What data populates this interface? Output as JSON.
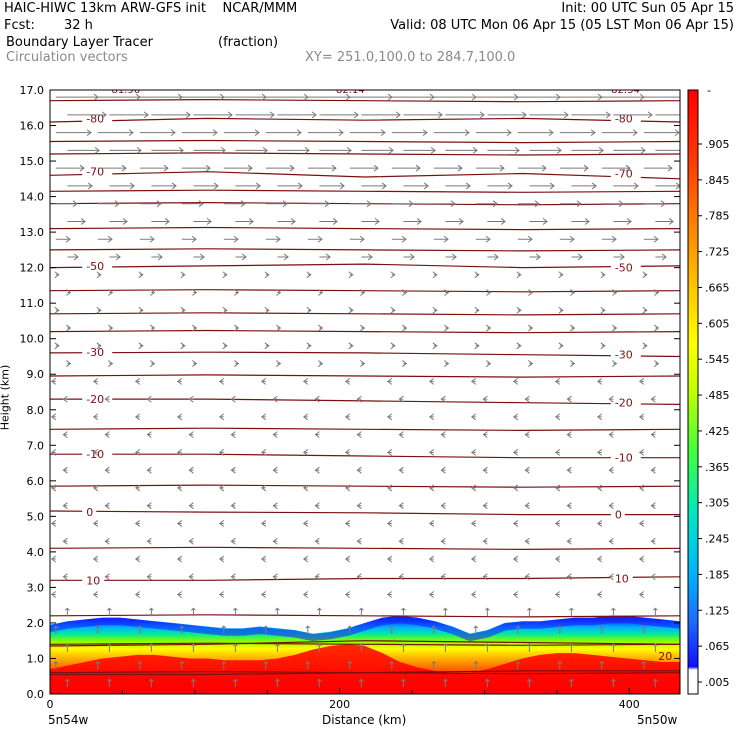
{
  "header": {
    "line1_left": "HAIC-HIWC 13km ARW-GFS init    NCAR/MMM",
    "line1_right": "Init: 00 UTC Sun 05 Apr 15",
    "fcst_label": "Fcst:",
    "fcst_value": "32 h",
    "valid": "Valid: 08 UTC Mon 06 Apr 15 (05 LST Mon 06 Apr 15)",
    "field_name": "Boundary Layer Tracer",
    "field_units": "(fraction)",
    "vectors_label": "Circulation vectors",
    "xsect": "XY= 251.0,100.0 to 284.7,100.0"
  },
  "colors": {
    "contour": "#7b1010",
    "vector": "#7a7a7a"
  },
  "chart_data": {
    "type": "heatmap",
    "ylabel": "Height (km)",
    "xlabel": "Distance (km)",
    "xlim": [
      0,
      435
    ],
    "ylim": [
      0,
      17
    ],
    "y_ticks": [
      "0.0",
      "1.0",
      "2.0",
      "3.0",
      "4.0",
      "5.0",
      "6.0",
      "7.0",
      "8.0",
      "9.0",
      "10.0",
      "11.0",
      "12.0",
      "13.0",
      "14.0",
      "15.0",
      "16.0",
      "17.0"
    ],
    "x_ticks": [
      0,
      200,
      400
    ],
    "x_end_left": "5n54w",
    "x_end_right": "5n50w",
    "colorbar": {
      "labels": [
        ".005",
        ".065",
        ".125",
        ".185",
        ".245",
        ".305",
        ".365",
        ".425",
        ".485",
        ".545",
        ".605",
        ".665",
        ".725",
        ".785",
        ".845",
        ".905"
      ],
      "top_label": "-"
    },
    "tracer_top_km": [
      1.95,
      2.05,
      2.1,
      2.15,
      2.15,
      2.1,
      2.05,
      2.0,
      1.95,
      1.9,
      1.85,
      1.85,
      1.9,
      1.85,
      1.8,
      1.7,
      1.75,
      1.85,
      2.0,
      2.15,
      2.2,
      2.15,
      2.05,
      1.9,
      1.7,
      1.8,
      2.0,
      2.05,
      2.05,
      2.1,
      2.15,
      2.15,
      2.2,
      2.2,
      2.15,
      2.1,
      2.05
    ],
    "tracer_valley_km": [
      0.7,
      0.8,
      0.9,
      1.0,
      1.05,
      1.1,
      1.1,
      1.05,
      1.0,
      1.0,
      0.95,
      0.95,
      0.95,
      1.0,
      1.1,
      1.25,
      1.35,
      1.4,
      1.35,
      1.15,
      0.9,
      0.75,
      0.65,
      0.6,
      0.6,
      0.7,
      0.85,
      1.0,
      1.1,
      1.15,
      1.15,
      1.1,
      1.05,
      1.0,
      0.95,
      0.9,
      0.9
    ],
    "temperature_contours": [
      {
        "label": "-80",
        "height_km": [
          16.1,
          16.2,
          16.15,
          16.2,
          16.1
        ]
      },
      {
        "label": "-70",
        "height_km": [
          14.6,
          14.7,
          14.55,
          14.65,
          14.5
        ]
      },
      {
        "label": "-50",
        "height_km": [
          12.0,
          12.05,
          12.1,
          12.0,
          12.05
        ]
      },
      {
        "label": "-30",
        "height_km": [
          9.6,
          9.62,
          9.6,
          9.55,
          9.5
        ]
      },
      {
        "label": "-20",
        "height_km": [
          8.3,
          8.3,
          8.25,
          8.2,
          8.15
        ]
      },
      {
        "label": "-10",
        "height_km": [
          6.75,
          6.75,
          6.7,
          6.65,
          6.65
        ]
      },
      {
        "label": "0",
        "height_km": [
          5.15,
          5.12,
          5.1,
          5.05,
          5.05
        ]
      },
      {
        "label": "10",
        "height_km": [
          3.2,
          3.2,
          3.25,
          3.25,
          3.3
        ]
      }
    ],
    "unlabeled_contours_km": [
      16.7,
      15.55,
      15.2,
      14.15,
      13.8,
      13.1,
      12.5,
      11.35,
      10.7,
      10.2,
      8.95,
      7.45,
      5.85,
      4.1,
      2.2,
      1.4,
      0.6
    ],
    "top_annotations": [
      "-81.96",
      "-82.14",
      "-82.34"
    ],
    "lower_annotations": [
      "20"
    ]
  }
}
